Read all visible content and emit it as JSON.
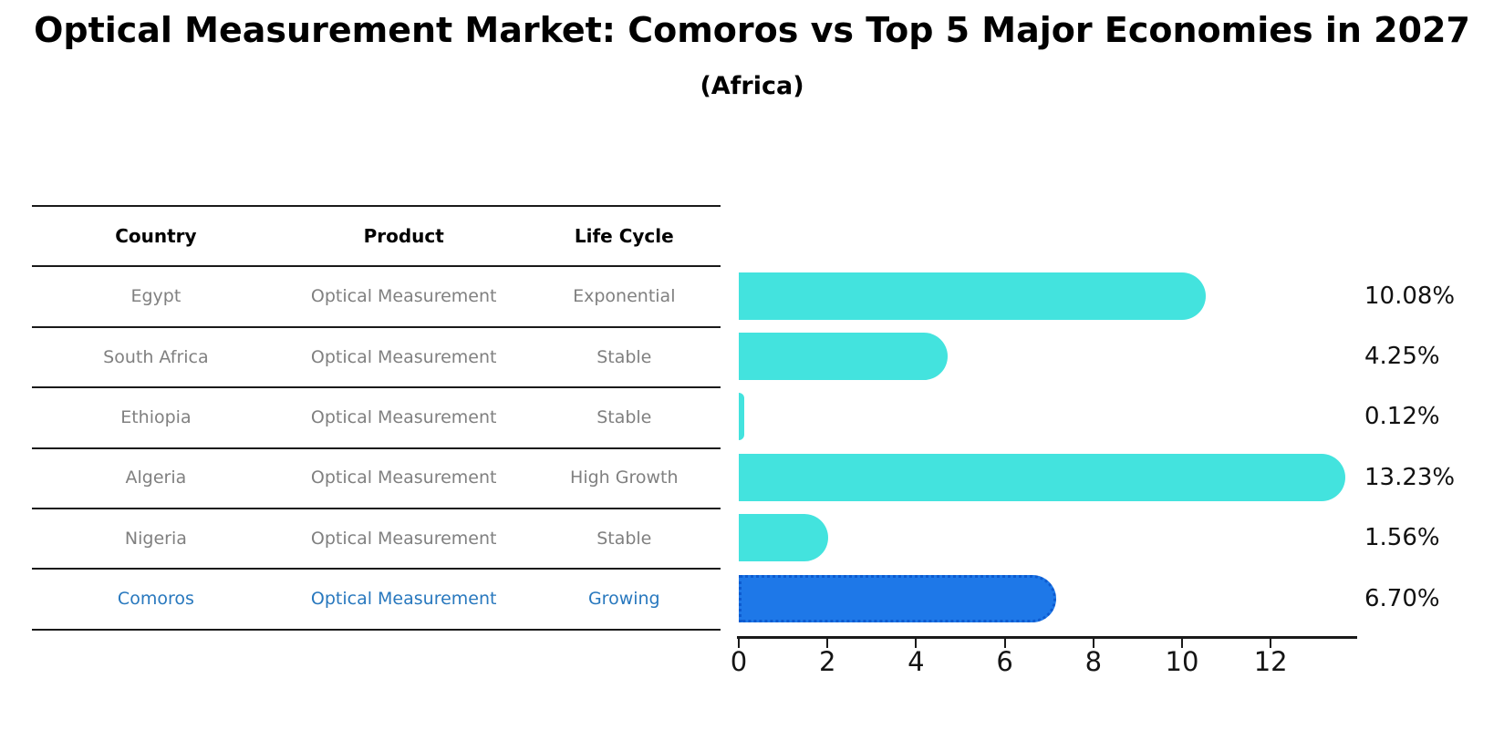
{
  "title": "Optical Measurement Market: Comoros vs Top 5 Major Economies in 2027",
  "subtitle": "(Africa)",
  "table": {
    "headers": {
      "country": "Country",
      "product": "Product",
      "life_cycle": "Life Cycle"
    },
    "rows": [
      {
        "country": "Egypt",
        "product": "Optical Measurement",
        "life_cycle": "Exponential",
        "highlight": false
      },
      {
        "country": "South Africa",
        "product": "Optical Measurement",
        "life_cycle": "Stable",
        "highlight": false
      },
      {
        "country": "Ethiopia",
        "product": "Optical Measurement",
        "life_cycle": "Stable",
        "highlight": false
      },
      {
        "country": "Algeria",
        "product": "Optical Measurement",
        "life_cycle": "High Growth",
        "highlight": false
      },
      {
        "country": "Nigeria",
        "product": "Optical Measurement",
        "life_cycle": "Stable",
        "highlight": false
      },
      {
        "country": "Comoros",
        "product": "Optical Measurement",
        "life_cycle": "Growing",
        "highlight": true
      }
    ]
  },
  "chart_data": {
    "type": "bar",
    "orientation": "horizontal",
    "title": "Optical Measurement Market: Comoros vs Top 5 Major Economies in 2027",
    "subtitle": "(Africa)",
    "categories": [
      "Egypt",
      "South Africa",
      "Ethiopia",
      "Algeria",
      "Nigeria",
      "Comoros"
    ],
    "values": [
      10.08,
      4.25,
      0.12,
      13.23,
      1.56,
      6.7
    ],
    "labels": [
      "10.08%",
      "4.25%",
      "0.12%",
      "13.23%",
      "1.56%",
      "6.70%"
    ],
    "x_ticks": [
      0,
      2,
      4,
      6,
      8,
      10,
      12
    ],
    "xlim": [
      0,
      14
    ],
    "grid": false,
    "legend": "none",
    "highlight_index": 5,
    "colors": {
      "bar": "#43E3DE",
      "highlight_bar": "#1E78E8",
      "highlight_border": "#0D5BD0",
      "highlight_text": "#2878BE",
      "muted_text": "#808080"
    }
  }
}
